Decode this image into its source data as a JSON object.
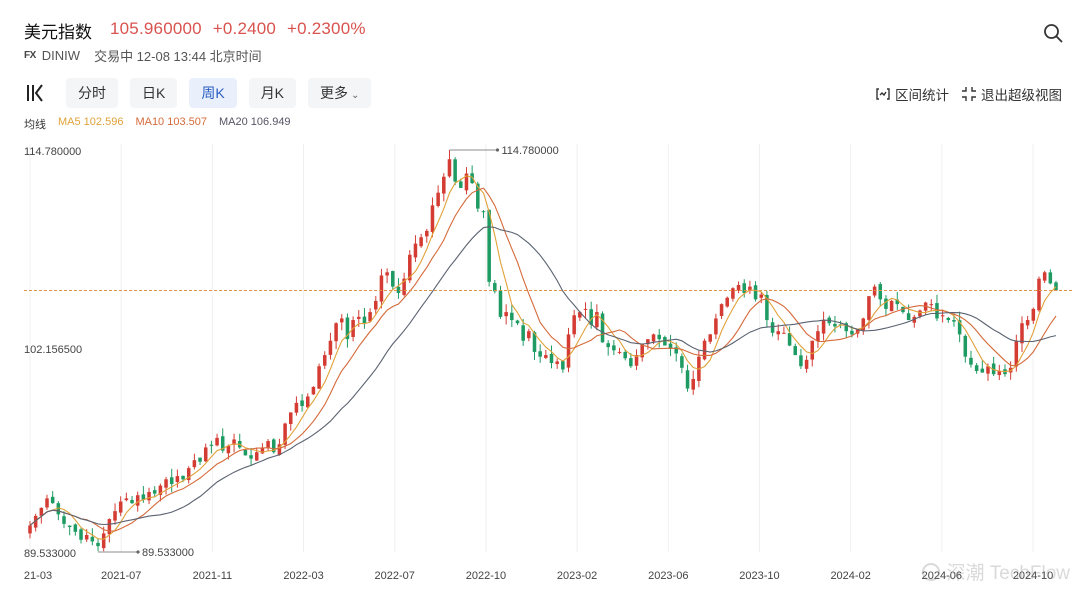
{
  "header": {
    "title": "美元指数",
    "price": "105.960000",
    "change": "+0.2400",
    "change_pct": "+0.2300%",
    "market_badge": "FX",
    "code": "DINIW",
    "status": "交易中 12-08 13:44 北京时间"
  },
  "toolbar": {
    "tabs": [
      {
        "label": "分时"
      },
      {
        "label": "日K"
      },
      {
        "label": "周K"
      },
      {
        "label": "月K"
      },
      {
        "label": "更多"
      }
    ],
    "active_tab": "周K",
    "range_stats": "区间统计",
    "exit_super_view": "退出超级视图"
  },
  "ma_legend": {
    "label": "均线",
    "ma5": "MA5 102.596",
    "ma10": "MA10 103.507",
    "ma20": "MA20 106.949"
  },
  "colors": {
    "up": "#d43c33",
    "down": "#1e9b63",
    "ma5": "#e0a23a",
    "ma10": "#d56a3a",
    "ma20": "#5a6270",
    "current_line": "#e0944a"
  },
  "chart_data": {
    "type": "candlestick",
    "ylim": [
      89.533,
      114.78
    ],
    "y_tick_labels": [
      "114.780000",
      "102.156500",
      "89.533000"
    ],
    "x_tick_labels": [
      "21-03",
      "2021-07",
      "2021-11",
      "2022-03",
      "2022-07",
      "2022-10",
      "2023-02",
      "2023-06",
      "2023-10",
      "2024-02",
      "2024-06",
      "2024-10"
    ],
    "max_annotation": "114.780000",
    "min_annotation": "89.533000",
    "current_price": 105.96,
    "closes": [
      91.2,
      91.8,
      92.3,
      92.9,
      92.6,
      91.9,
      91.3,
      91.1,
      90.8,
      90.3,
      90.6,
      90.2,
      89.9,
      90.7,
      91.6,
      92.1,
      92.7,
      92.9,
      92.6,
      93.1,
      92.8,
      93.3,
      93.2,
      93.7,
      94.1,
      93.8,
      94.3,
      94.1,
      94.8,
      95.3,
      95.2,
      96.1,
      96.2,
      96.7,
      95.9,
      96.2,
      96.6,
      96.1,
      95.6,
      95.4,
      95.8,
      96.1,
      96.5,
      95.8,
      96.3,
      97.6,
      98.3,
      98.9,
      98.7,
      99.3,
      99.9,
      101.2,
      101.9,
      102.8,
      103.9,
      104.2,
      102.9,
      104.1,
      104.3,
      103.9,
      104.6,
      105.3,
      106.9,
      107.1,
      106.2,
      105.8,
      106.7,
      108.2,
      108.9,
      109.3,
      109.7,
      111.3,
      112.1,
      113.1,
      114.2,
      112.8,
      112.4,
      113.3,
      112.7,
      111.1,
      110.9,
      106.5,
      105.9,
      104.3,
      104.6,
      104.1,
      103.9,
      102.8,
      103.4,
      102.1,
      101.8,
      101.9,
      101.4,
      101.5,
      101.0,
      103.2,
      104.4,
      104.6,
      104.8,
      103.8,
      104.6,
      102.7,
      102.4,
      102.2,
      102.1,
      101.7,
      101.2,
      101.9,
      102.6,
      102.9,
      103.2,
      102.9,
      102.5,
      102.3,
      102.0,
      101.1,
      99.8,
      100.4,
      101.8,
      102.8,
      103.2,
      104.2,
      105.1,
      105.5,
      106.1,
      106.3,
      105.8,
      106.2,
      105.4,
      105.7,
      104.1,
      103.3,
      103.4,
      103.3,
      102.5,
      101.9,
      101.2,
      101.6,
      102.8,
      103.4,
      104.1,
      103.9,
      103.7,
      103.8,
      103.4,
      103.2,
      103.5,
      104.2,
      105.6,
      106.2,
      105.4,
      104.8,
      105.3,
      105.1,
      104.6,
      104.1,
      104.3,
      104.7,
      105.2,
      105.1,
      104.2,
      104.4,
      104.1,
      104.0,
      103.2,
      101.8,
      101.3,
      100.9,
      100.8,
      101.2,
      100.7,
      100.9,
      100.7,
      101.1,
      102.8,
      103.9,
      104.1,
      104.8,
      106.7,
      107.1,
      106.4,
      105.96
    ]
  },
  "watermark": "深潮 TechFlow"
}
